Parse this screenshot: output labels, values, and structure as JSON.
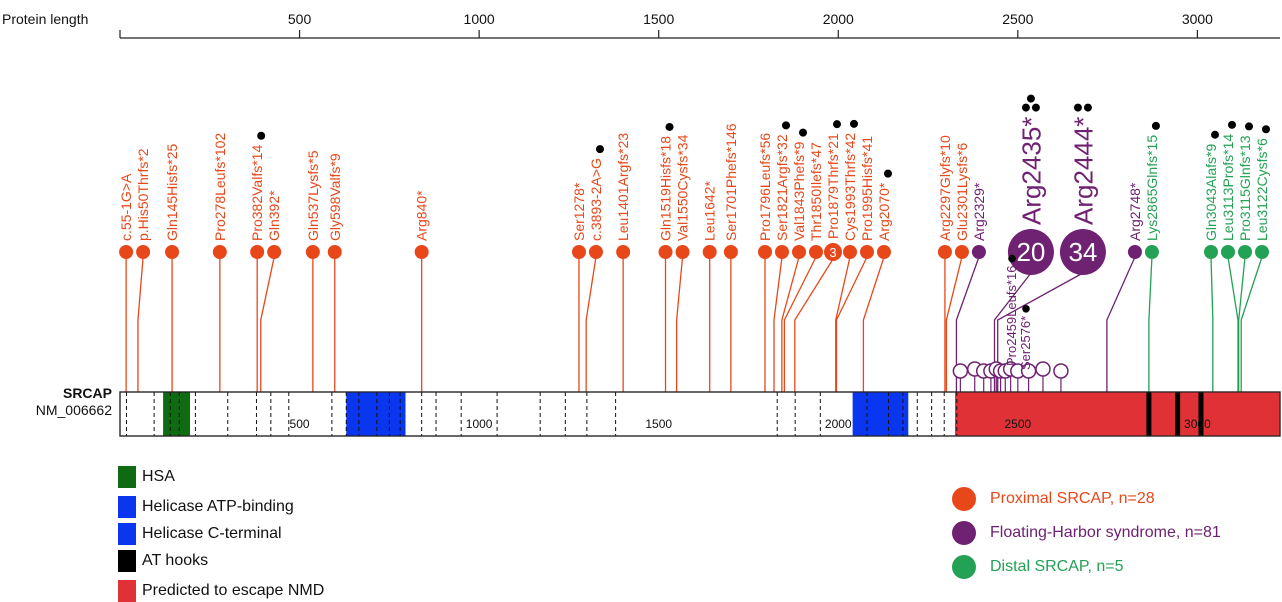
{
  "axis": {
    "label": "Protein length",
    "ticks": [
      500,
      1000,
      1500,
      2000,
      2500,
      3000
    ],
    "max": 3230
  },
  "gene": {
    "name": "SRCAP",
    "transcript": "NM_006662",
    "labels": [
      "500",
      "1000",
      "1500",
      "2000",
      "2500",
      "3000"
    ],
    "exon_boundaries": [
      18,
      95,
      140,
      165,
      210,
      300,
      380,
      420,
      470,
      590,
      630,
      665,
      715,
      750,
      780,
      840,
      880,
      950,
      1050,
      1170,
      1240,
      1300,
      1380,
      1830,
      1880,
      1950,
      2080,
      2140,
      2180,
      2220,
      2260,
      2295,
      2330
    ],
    "domains": [
      {
        "name": "HSA",
        "start": 120,
        "end": 195,
        "color": "#0e6b12"
      },
      {
        "name": "Helicase ATP-binding",
        "start": 630,
        "end": 795,
        "color": "#0a36f0"
      },
      {
        "name": "Helicase C-terminal",
        "start": 2040,
        "end": 2195,
        "color": "#0a36f0"
      },
      {
        "name": "Predicted to escape NMD",
        "start": 2325,
        "end": 3230,
        "color": "#e03236"
      }
    ],
    "at_hooks": [
      2865,
      2945,
      3010
    ]
  },
  "legend_domains": [
    {
      "label": "HSA",
      "color": "#0e6b12"
    },
    {
      "label": "Helicase ATP-binding",
      "color": "#0a36f0"
    },
    {
      "label": "Helicase C-terminal",
      "color": "#0a36f0"
    },
    {
      "label": "AT hooks",
      "color": "#000000"
    },
    {
      "label": "Predicted to escape NMD",
      "color": "#e03236"
    }
  ],
  "legend_groups": [
    {
      "label": "Proximal SRCAP, n=28",
      "color": "#e8471a"
    },
    {
      "label": "Floating-Harbor syndrome, n=81",
      "color": "#6f2172"
    },
    {
      "label": "Distal SRCAP, n=5",
      "color": "#23a154"
    }
  ],
  "colors": {
    "proximal": "#e8471a",
    "fhs": "#6f2172",
    "distal": "#23a154"
  },
  "variants_top": [
    {
      "label": "c.55-1G>A",
      "pos": 17,
      "group": "proximal"
    },
    {
      "label": "p.His50Thrfs*2",
      "pos": 50,
      "group": "proximal"
    },
    {
      "label": "Gln145Hisfs*25",
      "pos": 145,
      "group": "proximal"
    },
    {
      "label": "Pro278Leufs*102",
      "pos": 278,
      "group": "proximal"
    },
    {
      "label": "Pro382Valfs*14",
      "pos": 382,
      "group": "proximal",
      "marks": 1
    },
    {
      "label": "Gln392*",
      "pos": 392,
      "group": "proximal"
    },
    {
      "label": "Gln537Lysfs*5",
      "pos": 537,
      "group": "proximal"
    },
    {
      "label": "Gly598Valfs*9",
      "pos": 598,
      "group": "proximal"
    },
    {
      "label": "Arg840*",
      "pos": 840,
      "group": "proximal"
    },
    {
      "label": "Ser1278*",
      "pos": 1278,
      "group": "proximal"
    },
    {
      "label": "c.3893-2A>G",
      "pos": 1298,
      "group": "proximal",
      "marks": 1
    },
    {
      "label": "Leu1401Argfs*23",
      "pos": 1401,
      "group": "proximal"
    },
    {
      "label": "Gln1519Hisfs*18",
      "pos": 1519,
      "group": "proximal",
      "marks": 1
    },
    {
      "label": "Val1550Cysfs*34",
      "pos": 1550,
      "group": "proximal"
    },
    {
      "label": "Leu1642*",
      "pos": 1642,
      "group": "proximal"
    },
    {
      "label": "Ser1701Phefs*146",
      "pos": 1701,
      "group": "proximal"
    },
    {
      "label": "Pro1796Leufs*56",
      "pos": 1796,
      "group": "proximal"
    },
    {
      "label": "Ser1821Argfs*32",
      "pos": 1821,
      "group": "proximal",
      "marks": 1
    },
    {
      "label": "Val1843Phefs*9",
      "pos": 1843,
      "group": "proximal",
      "marks": 1
    },
    {
      "label": "Thr1850Ilefs*47",
      "pos": 1850,
      "group": "proximal"
    },
    {
      "label": "Pro1879Thrfs*21",
      "pos": 1879,
      "group": "proximal",
      "marks": 1,
      "count": "3"
    },
    {
      "label": "Cys1993Thrfs*42",
      "pos": 1993,
      "group": "proximal",
      "marks": 1
    },
    {
      "label": "Pro1995Hisfs*41",
      "pos": 1995,
      "group": "proximal"
    },
    {
      "label": "Arg2070*",
      "pos": 2070,
      "group": "proximal",
      "marks": 1
    },
    {
      "label": "Arg2297Glyfs*10",
      "pos": 2297,
      "group": "proximal"
    },
    {
      "label": "Glu2301Lysfs*6",
      "pos": 2301,
      "group": "proximal"
    },
    {
      "label": "Arg2329*",
      "pos": 2329,
      "group": "fhs"
    },
    {
      "label": "Arg2435*",
      "pos": 2435,
      "group": "fhs",
      "marks": 3,
      "count": "20",
      "big": true
    },
    {
      "label": "Arg2444*",
      "pos": 2444,
      "group": "fhs",
      "marks": 2,
      "count": "34",
      "big": true
    },
    {
      "label": "Arg2748*",
      "pos": 2748,
      "group": "fhs"
    },
    {
      "label": "Lys2865Glnfs*15",
      "pos": 2865,
      "group": "distal",
      "marks": 1
    },
    {
      "label": "Gln3043Alafs*9",
      "pos": 3043,
      "group": "distal",
      "marks": 1
    },
    {
      "label": "Leu3113Profs*14",
      "pos": 3113,
      "group": "distal",
      "marks": 1
    },
    {
      "label": "Pro3115Glnfs*13",
      "pos": 3115,
      "group": "distal",
      "marks": 1
    },
    {
      "label": "Leu3122Cysfs*6",
      "pos": 3122,
      "group": "distal",
      "marks": 1
    }
  ],
  "variants_low": [
    {
      "label": "Pro2459Leufs*16",
      "pos": 2459,
      "group": "fhs",
      "marks": 1
    },
    {
      "label": "Ser2576*",
      "pos": 2576,
      "group": "fhs",
      "marks": 1
    }
  ],
  "fhs_cluster_positions": [
    2340,
    2380,
    2405,
    2425,
    2440,
    2452,
    2465,
    2480,
    2500,
    2530,
    2570,
    2620
  ]
}
